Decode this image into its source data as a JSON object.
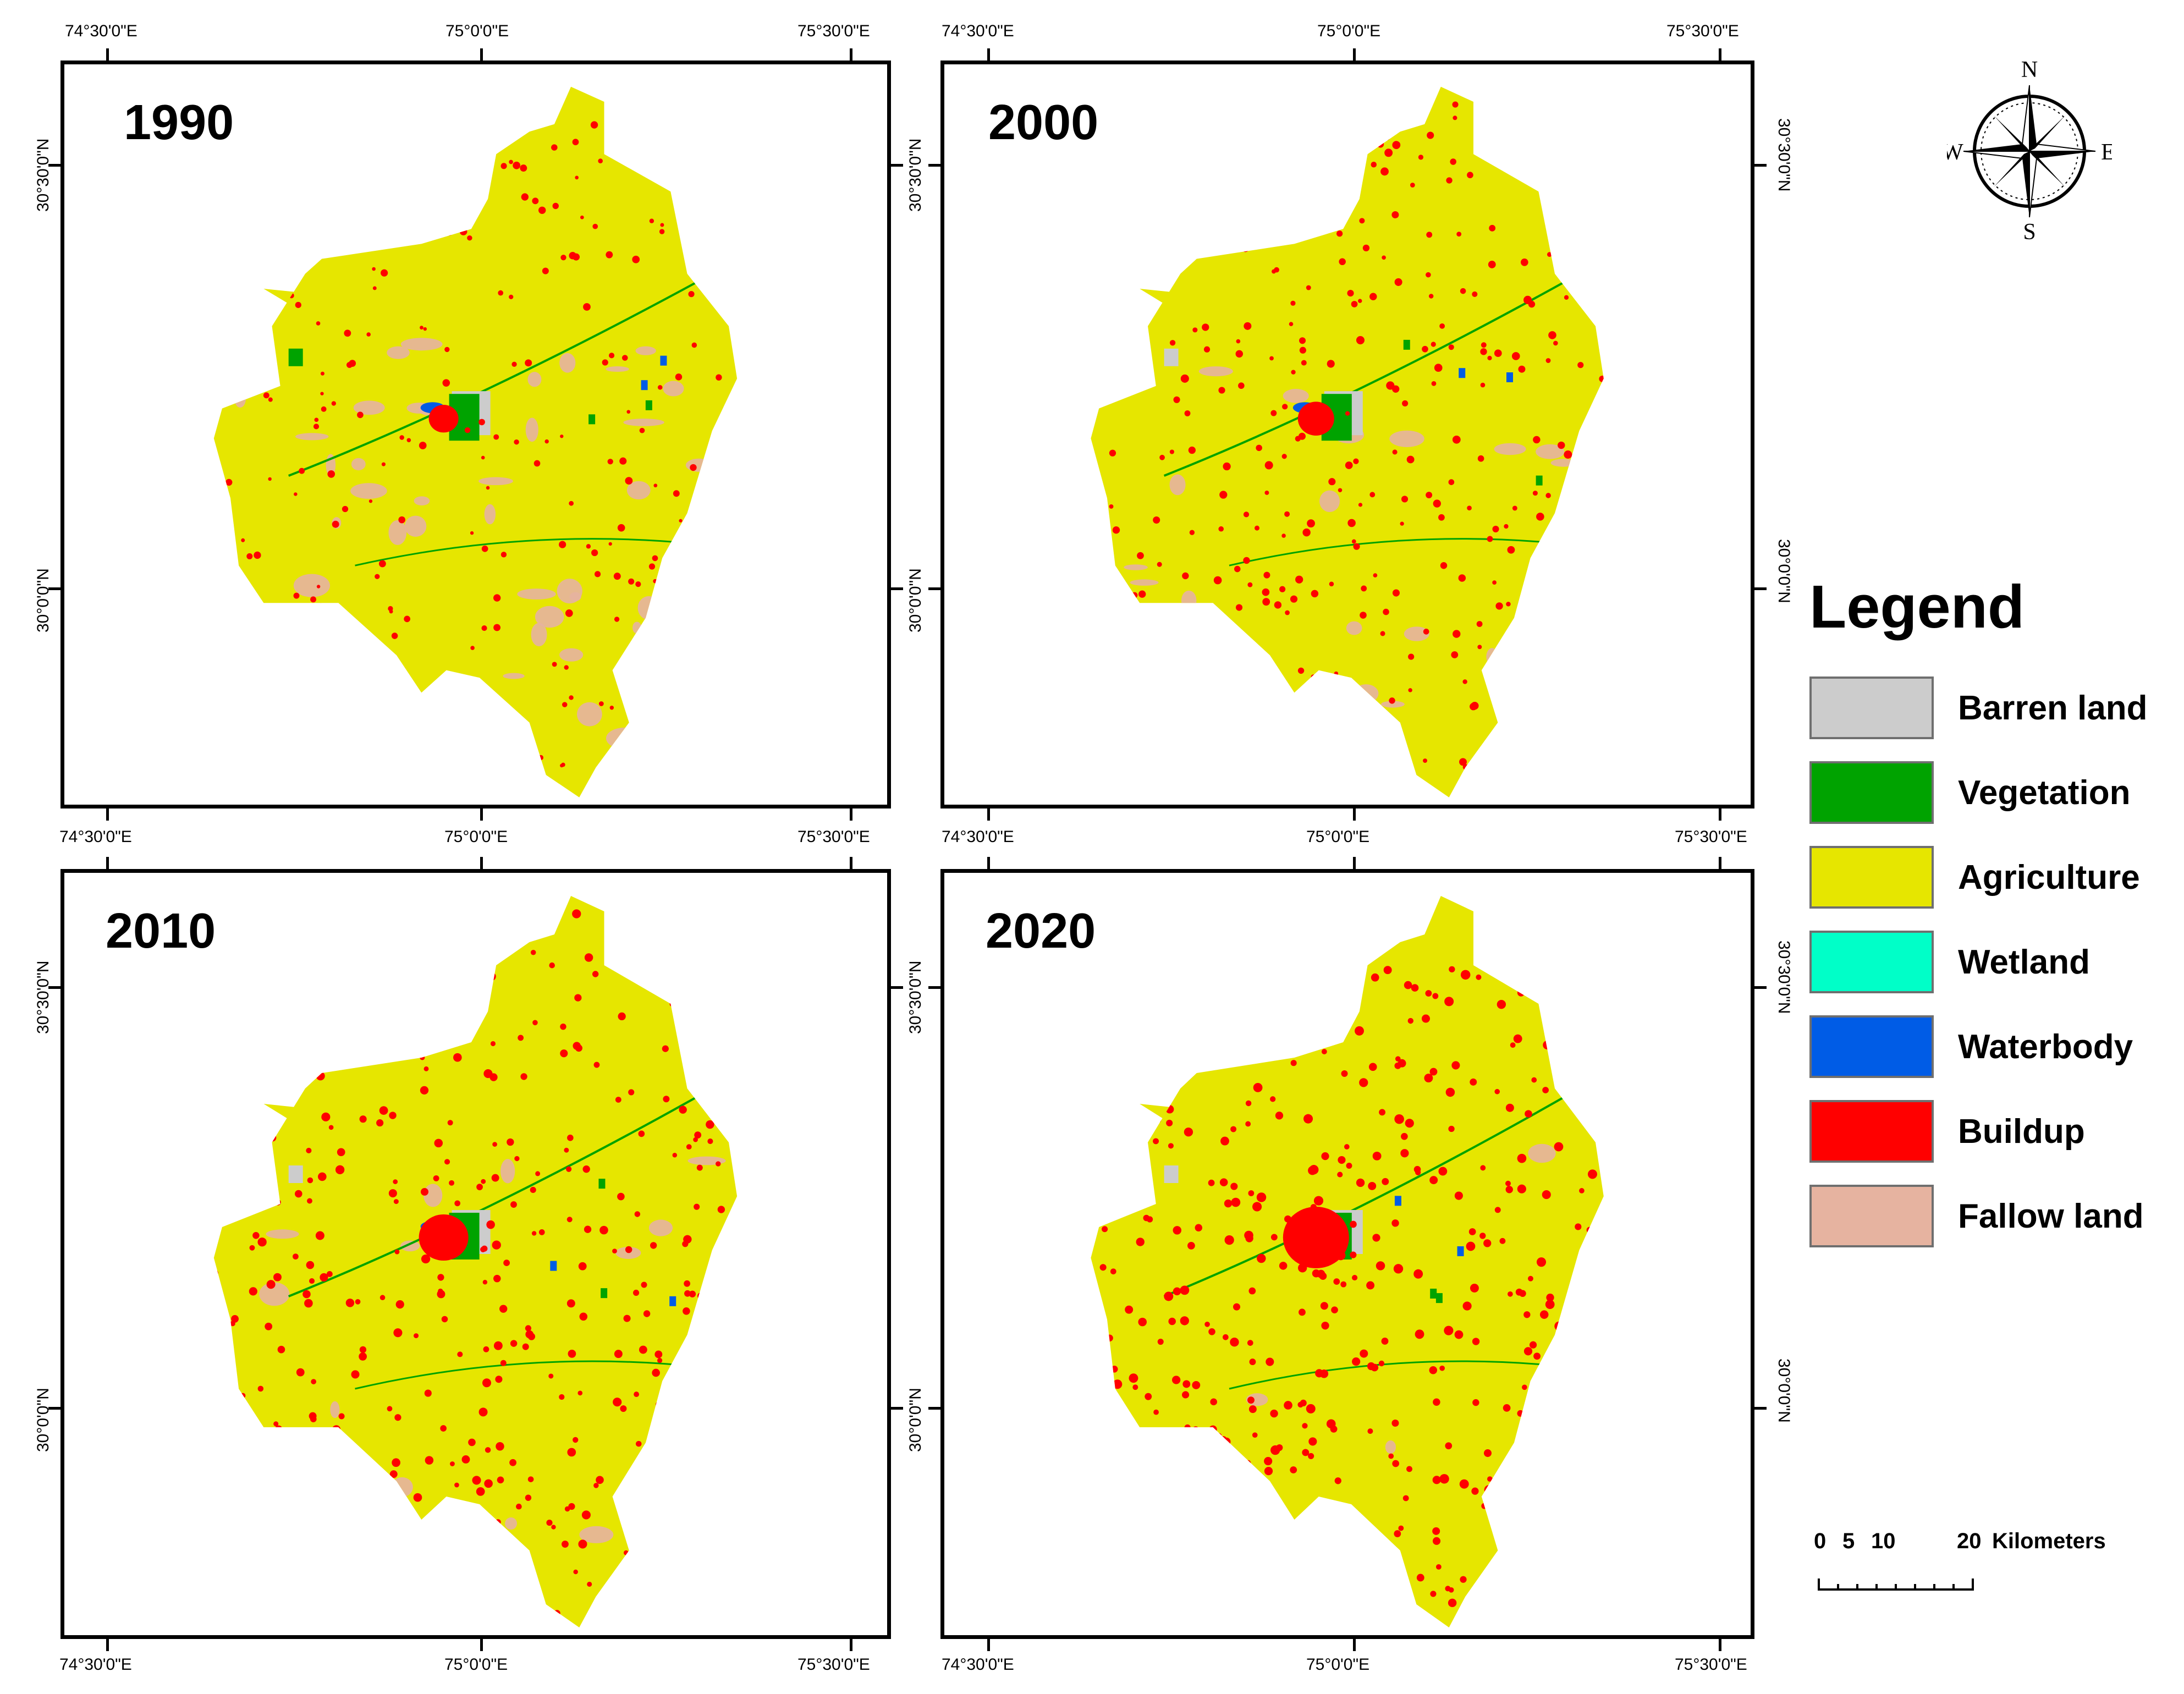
{
  "panels": [
    {
      "year": "1990"
    },
    {
      "year": "2000"
    },
    {
      "year": "2010"
    },
    {
      "year": "2020"
    }
  ],
  "graticule": {
    "lon_labels": [
      "74°30'0\"E",
      "75°0'0\"E",
      "75°30'0\"E"
    ],
    "lat_labels": [
      "30°30'0\"N",
      "30°0'0\"N"
    ]
  },
  "compass": {
    "n": "N",
    "s": "S",
    "e": "E",
    "w": "W"
  },
  "legend": {
    "title": "Legend",
    "items": [
      {
        "label": "Barren land",
        "color": "#cccccc"
      },
      {
        "label": "Vegetation",
        "color": "#00a300"
      },
      {
        "label": "Agriculture",
        "color": "#e6e600"
      },
      {
        "label": "Wetland",
        "color": "#00ffc8"
      },
      {
        "label": "Waterbody",
        "color": "#005ce6"
      },
      {
        "label": "Buildup",
        "color": "#ff0000"
      },
      {
        "label": "Fallow land",
        "color": "#e6b3a0"
      }
    ]
  },
  "scalebar": {
    "ticks": [
      "0",
      "5",
      "10",
      "20"
    ],
    "unit": "Kilometers"
  }
}
